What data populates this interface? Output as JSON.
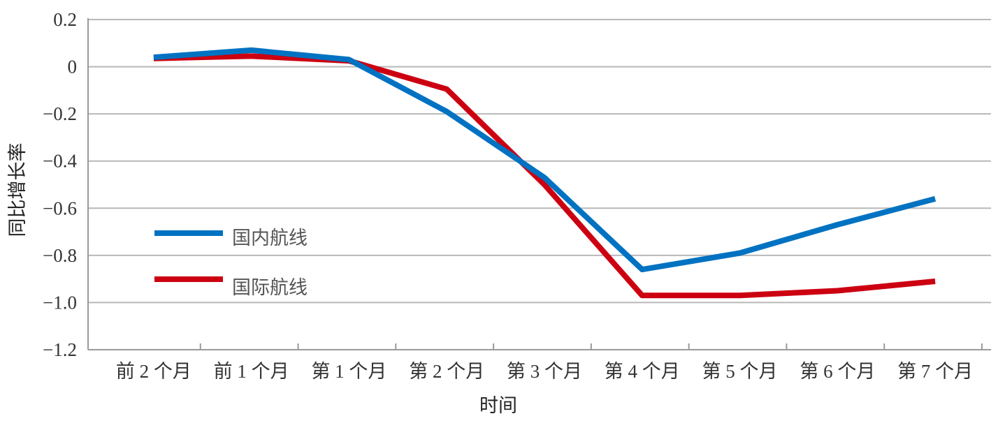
{
  "chart_data": {
    "type": "line",
    "title": "",
    "xlabel": "时间",
    "ylabel": "同比增长率",
    "categories": [
      "前 2 个月",
      "前 1 个月",
      "第 1 个月",
      "第 2 个月",
      "第 3 个月",
      "第 4 个月",
      "第 5 个月",
      "第 6 个月",
      "第 7 个月"
    ],
    "ylim": [
      -1.2,
      0.2
    ],
    "yticks": [
      0.2,
      0,
      -0.2,
      -0.4,
      -0.6,
      -0.8,
      -1.0,
      -1.2
    ],
    "ytick_labels": [
      "0.2",
      "0",
      "−0.2",
      "−0.4",
      "−0.6",
      "−0.8",
      "−1.0",
      "−1.2"
    ],
    "grid": true,
    "legend_position": "center-left",
    "series": [
      {
        "name": "国内航线",
        "color": "#0072c2",
        "values": [
          0.04,
          0.07,
          0.03,
          -0.19,
          -0.47,
          -0.86,
          -0.79,
          -0.67,
          -0.56
        ]
      },
      {
        "name": "国际航线",
        "color": "#cc0011",
        "values": [
          0.035,
          0.045,
          0.025,
          -0.095,
          -0.5,
          -0.97,
          -0.97,
          -0.95,
          -0.91
        ]
      }
    ]
  }
}
